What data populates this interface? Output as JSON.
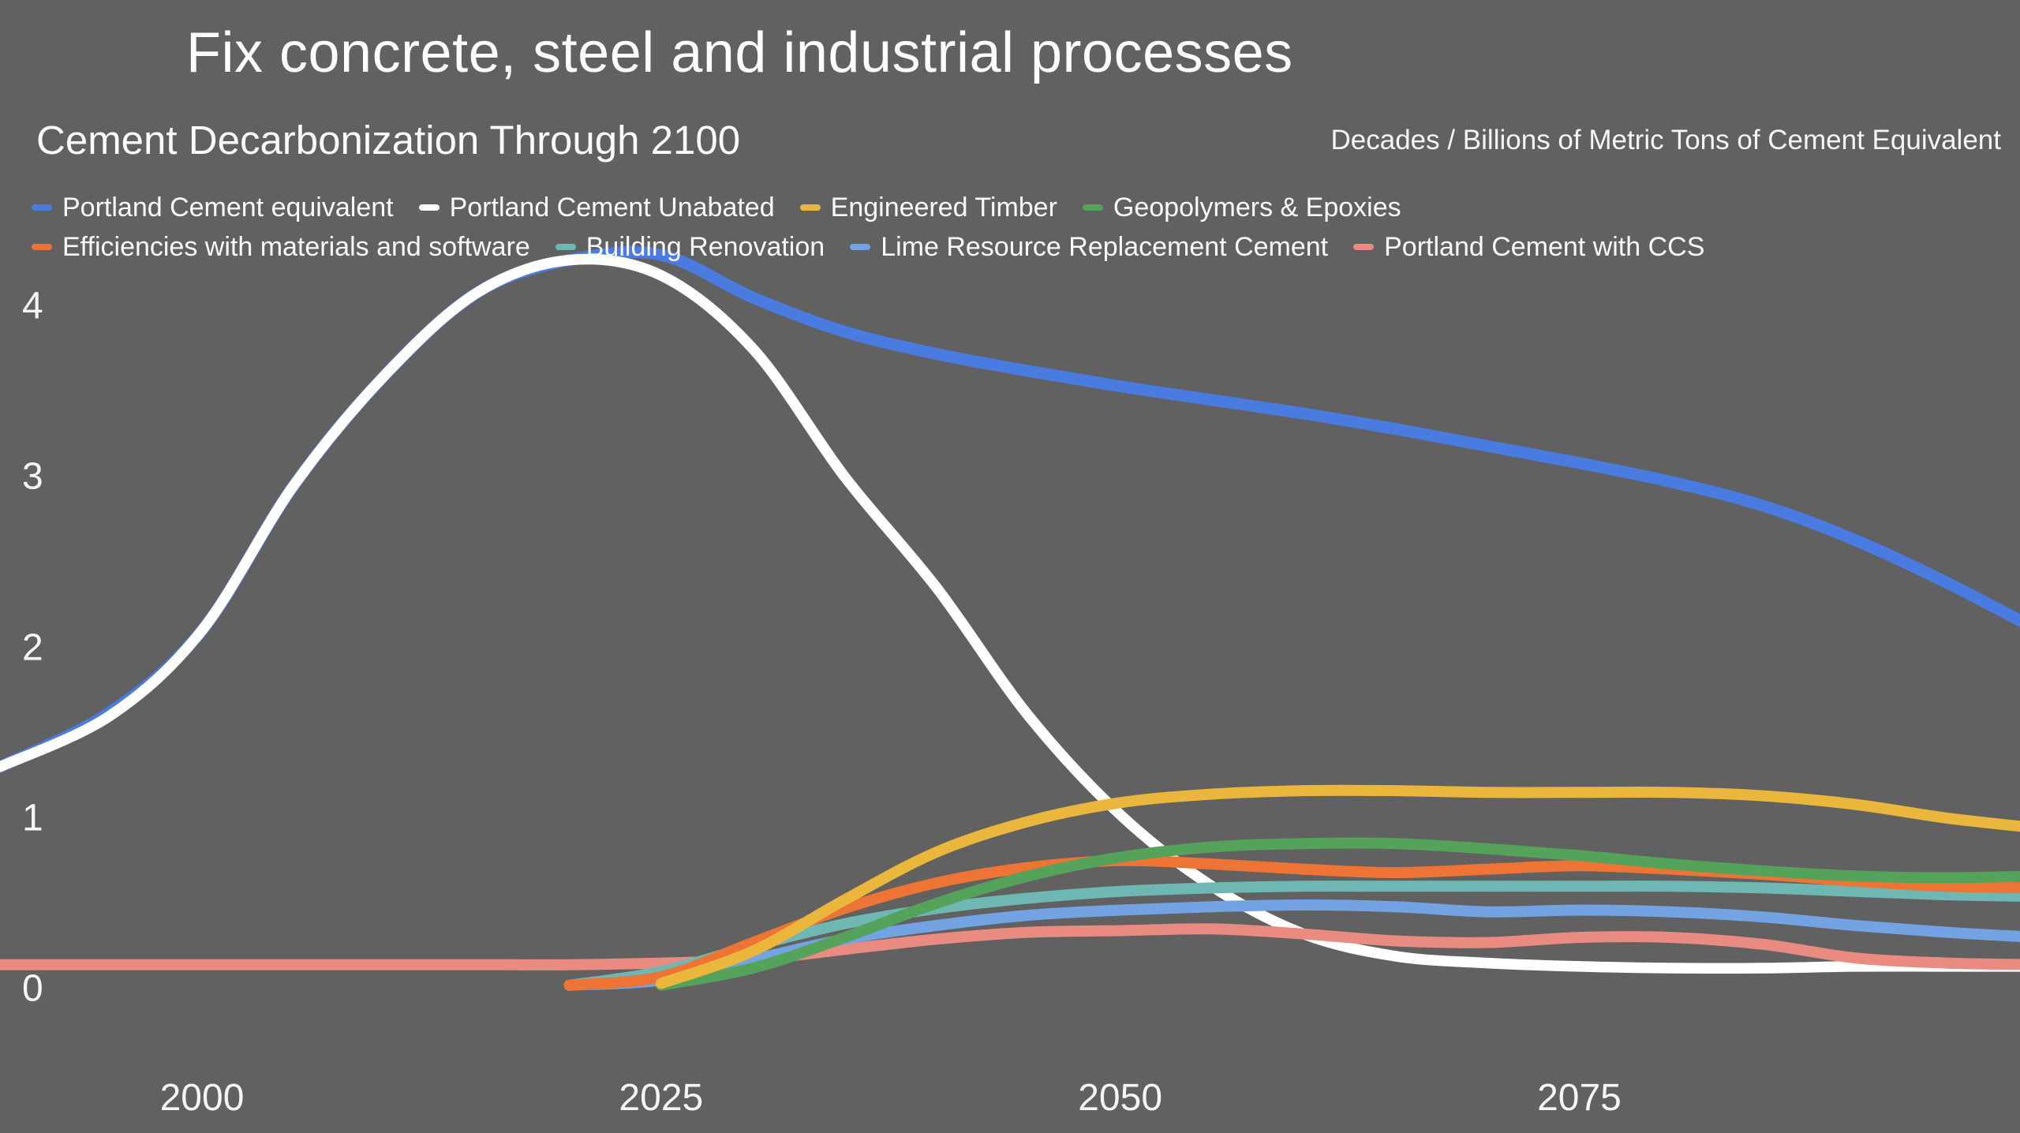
{
  "slide": {
    "title": "Fix concrete, steel and industrial processes"
  },
  "chart": {
    "title": "Cement Decarbonization Through 2100",
    "units_label": "Decades / Billions of Metric Tons of Cement Equivalent"
  },
  "chart_data": {
    "type": "line",
    "title": "Cement Decarbonization Through 2100",
    "xlabel": "Decades",
    "ylabel": "Billions of Metric Tons of Cement Equivalent",
    "x_domain": [
      1989,
      2099
    ],
    "ylim": [
      0,
      4.5
    ],
    "x_ticks": [
      2000,
      2025,
      2050,
      2075
    ],
    "y_ticks": [
      4,
      3,
      2,
      1,
      0
    ],
    "grid": false,
    "legend_position": "top",
    "background_color": "#616161",
    "years": [
      1989,
      1995,
      2000,
      2005,
      2010,
      2015,
      2020,
      2025,
      2030,
      2035,
      2040,
      2045,
      2050,
      2055,
      2060,
      2065,
      2070,
      2075,
      2080,
      2085,
      2090,
      2095,
      2100
    ],
    "series": [
      {
        "id": "portland-cement-equivalent",
        "name": "Portland Cement equivalent",
        "color": "#4a7be0",
        "values": [
          1.3,
          1.62,
          2.1,
          2.95,
          3.6,
          4.08,
          4.27,
          4.3,
          4.05,
          3.85,
          3.72,
          3.62,
          3.53,
          3.45,
          3.37,
          3.28,
          3.18,
          3.08,
          2.97,
          2.83,
          2.63,
          2.38,
          2.1
        ]
      },
      {
        "id": "portland-cement-unabated",
        "name": "Portland Cement Unabated",
        "color": "#ffffff",
        "values": [
          1.3,
          1.6,
          2.1,
          2.95,
          3.6,
          4.08,
          4.27,
          4.18,
          3.75,
          3.0,
          2.35,
          1.6,
          1.02,
          0.6,
          0.32,
          0.19,
          0.15,
          0.13,
          0.12,
          0.12,
          0.13,
          0.13,
          0.13
        ]
      },
      {
        "id": "engineered-timber",
        "name": "Engineered Timber",
        "color": "#eab63b",
        "values": [
          null,
          null,
          null,
          null,
          null,
          null,
          null,
          0.03,
          0.22,
          0.52,
          0.8,
          0.98,
          1.09,
          1.14,
          1.16,
          1.16,
          1.15,
          1.15,
          1.15,
          1.13,
          1.08,
          1.0,
          0.94
        ]
      },
      {
        "id": "geopolymers-epoxies",
        "name": "Geopolymers & Epoxies",
        "color": "#55a25a",
        "values": [
          null,
          null,
          null,
          null,
          null,
          null,
          null,
          0.02,
          0.12,
          0.3,
          0.5,
          0.66,
          0.77,
          0.83,
          0.85,
          0.85,
          0.82,
          0.78,
          0.73,
          0.69,
          0.66,
          0.65,
          0.66
        ]
      },
      {
        "id": "efficiencies-materials-software",
        "name": "Efficiencies with materials and software",
        "color": "#ed7434",
        "values": [
          null,
          null,
          null,
          null,
          null,
          null,
          0.02,
          0.07,
          0.27,
          0.47,
          0.62,
          0.71,
          0.75,
          0.73,
          0.7,
          0.68,
          0.7,
          0.72,
          0.7,
          0.67,
          0.63,
          0.6,
          0.59
        ]
      },
      {
        "id": "building-renovation",
        "name": "Building Renovation",
        "color": "#6fb7b2",
        "values": [
          null,
          null,
          null,
          null,
          null,
          null,
          0.02,
          0.1,
          0.25,
          0.38,
          0.47,
          0.53,
          0.57,
          0.59,
          0.6,
          0.6,
          0.6,
          0.6,
          0.6,
          0.59,
          0.57,
          0.55,
          0.54
        ]
      },
      {
        "id": "lime-resource-replacement-cement",
        "name": "Lime Resource Replacement Cement",
        "color": "#74a3e3",
        "values": [
          null,
          null,
          null,
          null,
          null,
          null,
          0.02,
          0.05,
          0.17,
          0.29,
          0.37,
          0.43,
          0.46,
          0.48,
          0.49,
          0.48,
          0.45,
          0.46,
          0.45,
          0.42,
          0.37,
          0.33,
          0.3
        ]
      },
      {
        "id": "portland-cement-ccs",
        "name": "Portland Cement with CCS",
        "color": "#e98b81",
        "values": [
          0.14,
          0.14,
          0.14,
          0.14,
          0.14,
          0.14,
          0.14,
          0.15,
          0.17,
          0.23,
          0.29,
          0.33,
          0.34,
          0.35,
          0.32,
          0.28,
          0.27,
          0.3,
          0.3,
          0.26,
          0.18,
          0.15,
          0.14
        ]
      }
    ]
  }
}
